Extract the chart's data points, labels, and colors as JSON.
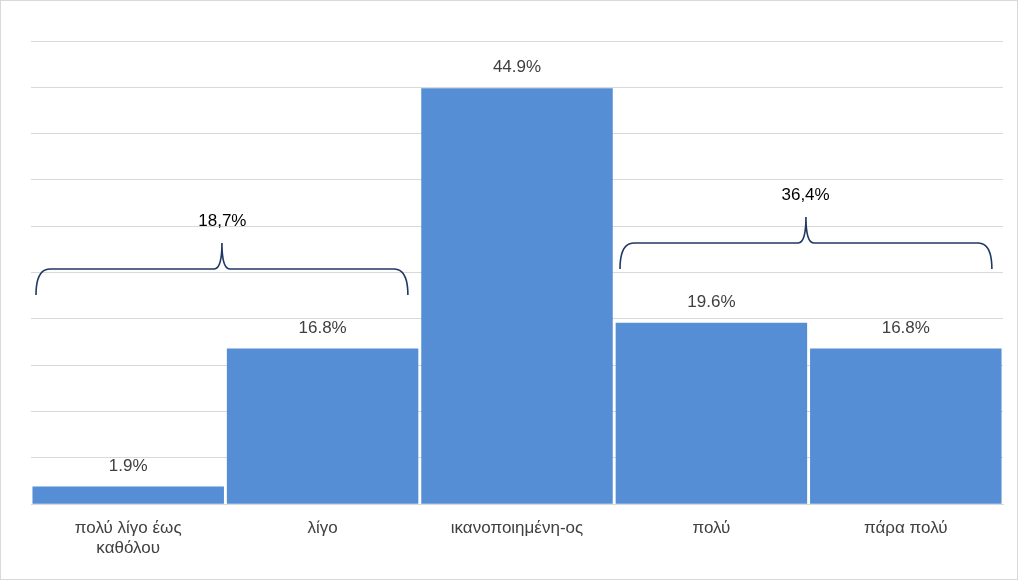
{
  "chart_data": {
    "type": "bar",
    "categories": [
      "πολύ λίγο έως καθόλου",
      "λίγο",
      "ικανοποιημένη-ος",
      "πολύ",
      "πάρα πολύ"
    ],
    "values": [
      1.9,
      16.8,
      44.9,
      19.6,
      16.8
    ],
    "color": "#558ed5",
    "value_labels": [
      "1.9%",
      "16.8%",
      "44.9%",
      "19.6%",
      "16.8%"
    ],
    "ylim": [
      0,
      50
    ],
    "yticks": [
      {
        "value": 0,
        "label": null
      },
      {
        "value": 5,
        "label": null
      },
      {
        "value": 10,
        "label": null
      },
      {
        "value": 15,
        "label": null
      },
      {
        "value": 20,
        "label": null
      },
      {
        "value": 25,
        "label": null
      },
      {
        "value": 30,
        "label": null
      },
      {
        "value": 35,
        "label": null
      },
      {
        "value": 40,
        "label": null
      },
      {
        "value": 45,
        "label": null
      },
      {
        "value": 50,
        "label": null
      }
    ],
    "tick_labels": "x",
    "grid": "y",
    "legend": false,
    "annotations": [
      "18,7%",
      "36,4%"
    ]
  }
}
